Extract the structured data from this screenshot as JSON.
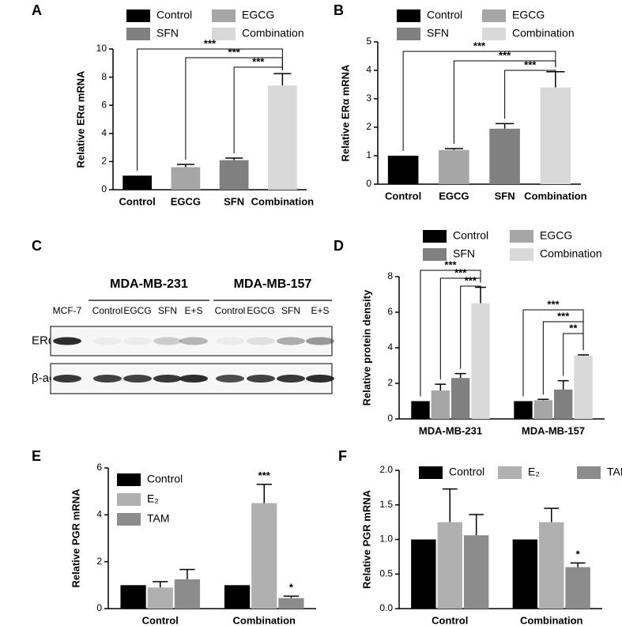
{
  "chart_data": [
    {
      "type": "bar",
      "panel": "A",
      "ylabel": "Relative ERα mRNA",
      "categories": [
        "Control",
        "EGCG",
        "SFN",
        "Combination"
      ],
      "values": [
        1.0,
        1.6,
        2.1,
        7.4
      ],
      "errors": [
        0,
        0.2,
        0.15,
        0.85
      ],
      "colors": [
        "#000000",
        "#a6a6a6",
        "#808080",
        "#d9d9d9"
      ],
      "ylim": [
        0,
        10
      ],
      "yticks": [
        0,
        2,
        4,
        6,
        8,
        10
      ],
      "annotations": [
        "***",
        "***",
        "***"
      ]
    },
    {
      "type": "bar",
      "panel": "B",
      "ylabel": "Relative ERα mRNA",
      "categories": [
        "Control",
        "EGCG",
        "SFN",
        "Combination"
      ],
      "values": [
        1.0,
        1.2,
        1.95,
        3.4
      ],
      "errors": [
        0,
        0.05,
        0.18,
        0.55
      ],
      "colors": [
        "#000000",
        "#a6a6a6",
        "#808080",
        "#d9d9d9"
      ],
      "ylim": [
        0,
        5
      ],
      "yticks": [
        0,
        1,
        2,
        3,
        4,
        5
      ],
      "annotations": [
        "***",
        "***",
        "***"
      ]
    },
    {
      "type": "bar",
      "panel": "D",
      "ylabel": "Relative protein density",
      "categories": [
        "MDA-MB-231",
        "MDA-MB-157"
      ],
      "series": [
        {
          "name": "Control",
          "color": "#000000",
          "values": [
            1.0,
            1.0
          ],
          "errors": [
            0,
            0
          ]
        },
        {
          "name": "EGCG",
          "color": "#a6a6a6",
          "values": [
            1.6,
            1.05
          ],
          "errors": [
            0.35,
            0.05
          ]
        },
        {
          "name": "SFN",
          "color": "#808080",
          "values": [
            2.3,
            1.65
          ],
          "errors": [
            0.25,
            0.5
          ]
        },
        {
          "name": "Combination",
          "color": "#d9d9d9",
          "values": [
            6.5,
            3.55
          ],
          "errors": [
            0.9,
            0.05
          ]
        }
      ],
      "ylim": [
        0,
        8
      ],
      "yticks": [
        0,
        2,
        4,
        6,
        8
      ],
      "annotations": [
        "***",
        "***",
        "***",
        "***",
        "***",
        "**"
      ]
    },
    {
      "type": "bar",
      "panel": "E",
      "ylabel": "Relative PGR mRNA",
      "categories": [
        "Control",
        "Combination"
      ],
      "series": [
        {
          "name": "Control",
          "color": "#000000",
          "values": [
            1.0,
            1.0
          ],
          "errors": [
            0,
            0
          ]
        },
        {
          "name": "E₂",
          "color": "#b0b0b0",
          "values": [
            0.9,
            4.5
          ],
          "errors": [
            0.25,
            0.8
          ]
        },
        {
          "name": "TAM",
          "color": "#8c8c8c",
          "values": [
            1.25,
            0.45
          ],
          "errors": [
            0.42,
            0.08
          ]
        }
      ],
      "ylim": [
        0,
        6
      ],
      "yticks": [
        0,
        2,
        4,
        6
      ],
      "annotations": [
        "***",
        "*"
      ]
    },
    {
      "type": "bar",
      "panel": "F",
      "ylabel": "Relative PGR mRNA",
      "categories": [
        "Control",
        "Combination"
      ],
      "series": [
        {
          "name": "Control",
          "color": "#000000",
          "values": [
            1.0,
            1.0
          ],
          "errors": [
            0,
            0
          ]
        },
        {
          "name": "E₂",
          "color": "#b0b0b0",
          "values": [
            1.25,
            1.25
          ],
          "errors": [
            0.48,
            0.2
          ]
        },
        {
          "name": "TAM",
          "color": "#8c8c8c",
          "values": [
            1.06,
            0.6
          ],
          "errors": [
            0.3,
            0.06
          ]
        }
      ],
      "ylim": [
        0,
        2
      ],
      "yticks": [
        {
          "value": 0,
          "label": "0.0"
        },
        {
          "value": 0.5,
          "label": "0.5"
        },
        {
          "value": 1,
          "label": "1.0"
        },
        {
          "value": 1.5,
          "label": "1.5"
        },
        {
          "value": 2,
          "label": "2.0"
        }
      ],
      "annotations": [
        "*"
      ]
    }
  ],
  "blot": {
    "panel": "C",
    "groups": [
      "MDA-MB-231",
      "MDA-MB-157"
    ],
    "lanes": [
      "MCF-7",
      "Control",
      "EGCG",
      "SFN",
      "E+S",
      "Control",
      "EGCG",
      "SFN",
      "E+S"
    ],
    "rows": [
      "ERα",
      "β-actin"
    ]
  }
}
